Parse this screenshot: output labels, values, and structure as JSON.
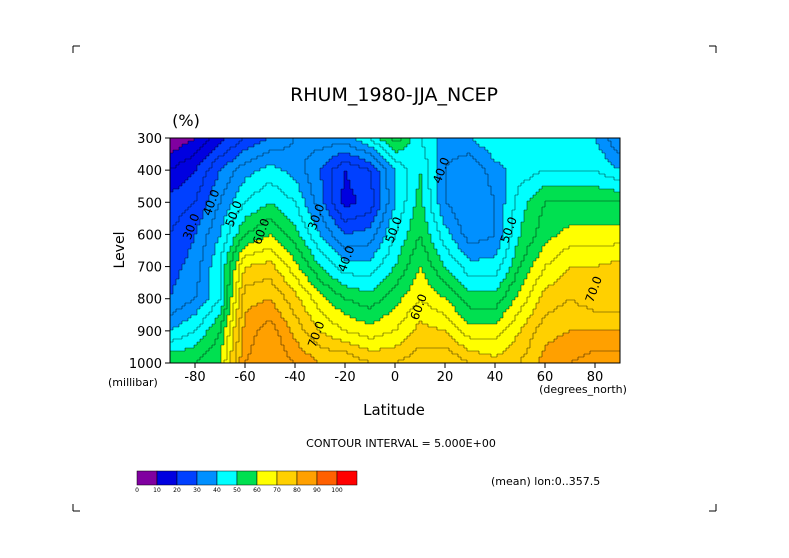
{
  "chart_data": {
    "type": "heatmap",
    "subtype": "filled-contour",
    "title": "RHUM_1980-JJA_NCEP",
    "units_label": "(%)",
    "xlabel": "Latitude",
    "ylabel": "Level",
    "x_unit_label": "(degrees_north)",
    "y_unit_label": "(millibar)",
    "xlim": [
      -90,
      90
    ],
    "ylim": [
      1000,
      300
    ],
    "x_ticks": [
      "-80",
      "-60",
      "-40",
      "-20",
      "0",
      "20",
      "40",
      "60",
      "80"
    ],
    "x_tick_values": [
      -80,
      -60,
      -40,
      -20,
      0,
      20,
      40,
      60,
      80
    ],
    "y_ticks": [
      "300",
      "400",
      "500",
      "600",
      "700",
      "800",
      "900",
      "1000"
    ],
    "y_tick_values": [
      300,
      400,
      500,
      600,
      700,
      800,
      900,
      1000
    ],
    "contour_interval_text": "CONTOUR INTERVAL = 5.000E+00",
    "subtitle_note": "(mean) lon:0..357.5",
    "colorbar": {
      "labels": [
        "0",
        "10",
        "20",
        "30",
        "40",
        "50",
        "60",
        "70",
        "80",
        "90",
        "100"
      ],
      "colors": [
        "#8000a0",
        "#0000e0",
        "#0040ff",
        "#0090ff",
        "#00ffff",
        "#00e050",
        "#ffff00",
        "#ffd000",
        "#ffa000",
        "#ff6000",
        "#ff0000"
      ]
    },
    "contour_labels": [
      {
        "text": "30.0",
        "x": -80,
        "y": 580
      },
      {
        "text": "40.0",
        "x": -72,
        "y": 505
      },
      {
        "text": "50.0",
        "x": -63,
        "y": 540
      },
      {
        "text": "60.0",
        "x": -52,
        "y": 595
      },
      {
        "text": "70.0",
        "x": -30,
        "y": 915
      },
      {
        "text": "30.0",
        "x": -30,
        "y": 550
      },
      {
        "text": "40.0",
        "x": -18,
        "y": 680
      },
      {
        "text": "50.0",
        "x": 1,
        "y": 590
      },
      {
        "text": "60.0",
        "x": 11,
        "y": 830
      },
      {
        "text": "40.0",
        "x": 20,
        "y": 405
      },
      {
        "text": "50.0",
        "x": 47,
        "y": 590
      },
      {
        "text": "70.0",
        "x": 81,
        "y": 775
      }
    ],
    "grid": false,
    "values_lat": [
      -90,
      -80,
      -70,
      -60,
      -50,
      -40,
      -30,
      -20,
      -10,
      0,
      10,
      20,
      30,
      40,
      50,
      60,
      70,
      80,
      90
    ],
    "values_lev": [
      1000,
      900,
      800,
      700,
      600,
      500,
      400,
      300
    ],
    "values": [
      [
        55,
        55,
        60,
        85,
        90,
        85,
        80,
        80,
        75,
        75,
        78,
        80,
        75,
        72,
        75,
        82,
        85,
        88,
        88
      ],
      [
        40,
        45,
        55,
        82,
        88,
        78,
        70,
        65,
        62,
        65,
        72,
        70,
        62,
        62,
        70,
        78,
        80,
        80,
        80
      ],
      [
        30,
        35,
        45,
        78,
        80,
        72,
        62,
        55,
        52,
        58,
        65,
        60,
        52,
        52,
        62,
        72,
        75,
        72,
        72
      ],
      [
        28,
        32,
        45,
        70,
        72,
        62,
        50,
        42,
        42,
        50,
        60,
        50,
        42,
        42,
        55,
        65,
        70,
        70,
        72
      ],
      [
        25,
        30,
        40,
        55,
        60,
        52,
        40,
        30,
        32,
        45,
        55,
        42,
        32,
        35,
        50,
        58,
        62,
        62,
        62
      ],
      [
        22,
        25,
        35,
        45,
        50,
        45,
        32,
        18,
        22,
        40,
        52,
        35,
        30,
        35,
        48,
        55,
        55,
        55,
        55
      ],
      [
        15,
        20,
        30,
        38,
        42,
        38,
        30,
        20,
        25,
        40,
        50,
        35,
        30,
        38,
        42,
        45,
        45,
        45,
        40
      ],
      [
        5,
        10,
        18,
        25,
        30,
        35,
        38,
        38,
        45,
        58,
        45,
        38,
        40,
        45,
        45,
        40,
        40,
        40,
        30
      ]
    ]
  }
}
